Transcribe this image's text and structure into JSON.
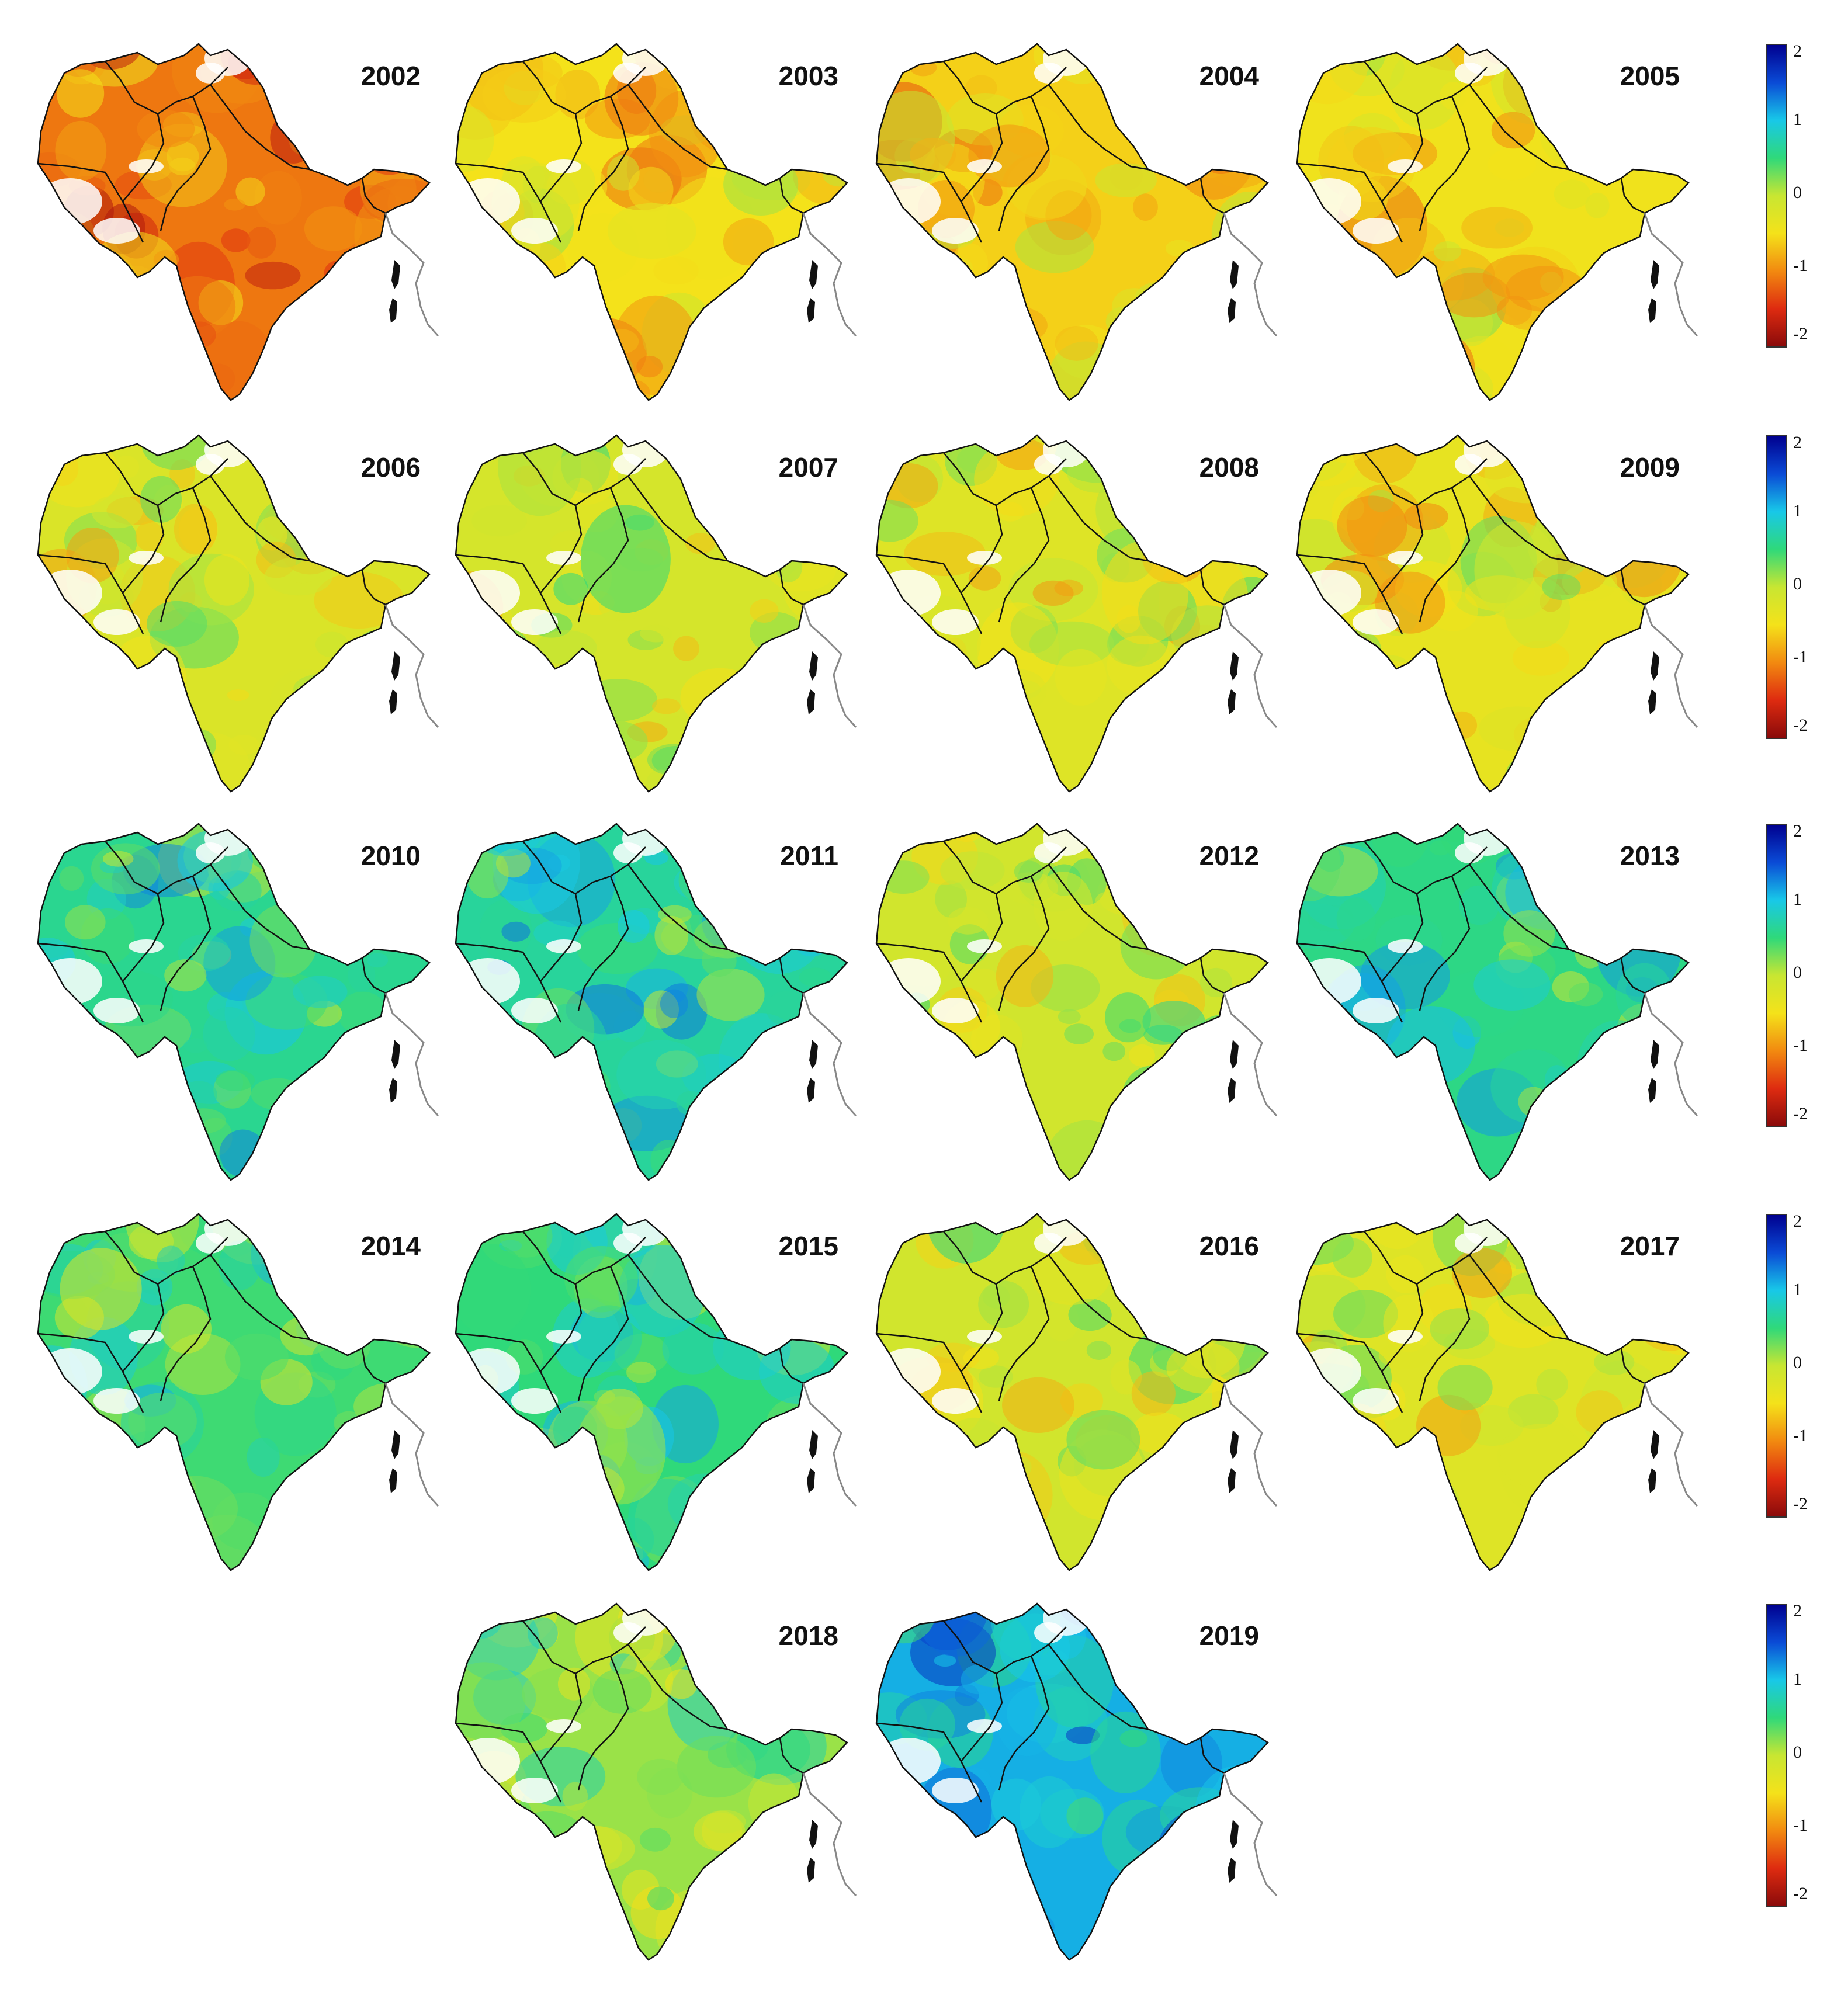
{
  "panels": [
    {
      "year": "2002",
      "tone": -1.1
    },
    {
      "year": "2003",
      "tone": -0.5
    },
    {
      "year": "2004",
      "tone": -0.6
    },
    {
      "year": "2005",
      "tone": -0.45
    },
    {
      "year": "2006",
      "tone": -0.2
    },
    {
      "year": "2007",
      "tone": -0.15
    },
    {
      "year": "2008",
      "tone": -0.25
    },
    {
      "year": "2009",
      "tone": -0.35
    },
    {
      "year": "2010",
      "tone": 0.6
    },
    {
      "year": "2011",
      "tone": 0.65
    },
    {
      "year": "2012",
      "tone": -0.1
    },
    {
      "year": "2013",
      "tone": 0.55
    },
    {
      "year": "2014",
      "tone": 0.45
    },
    {
      "year": "2015",
      "tone": 0.5
    },
    {
      "year": "2016",
      "tone": -0.1
    },
    {
      "year": "2017",
      "tone": -0.25
    },
    {
      "year": "2018",
      "tone": 0.15
    },
    {
      "year": "2019",
      "tone": 1.1
    }
  ],
  "colorbar": {
    "ticks": [
      "2",
      "1",
      "0",
      "-1",
      "-2"
    ],
    "stops": [
      "#00008f",
      "#0a4bd6",
      "#18c8e8",
      "#2fd97a",
      "#c8e632",
      "#f4e21a",
      "#f28a10",
      "#de2b10",
      "#8a0a0a"
    ]
  }
}
